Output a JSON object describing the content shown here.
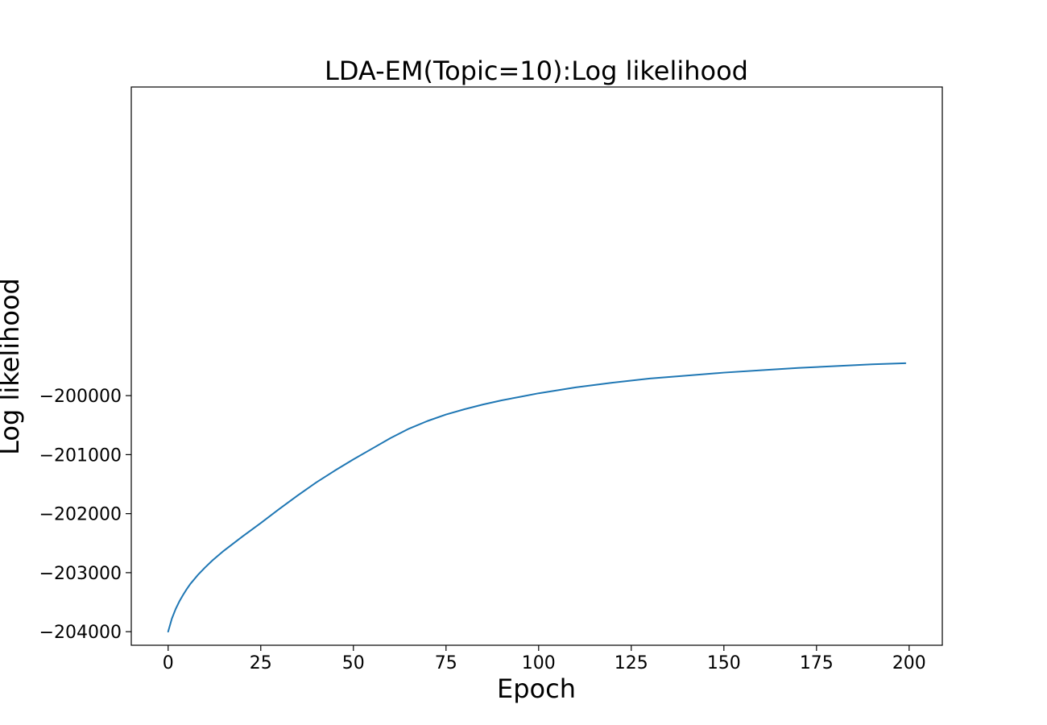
{
  "chart_data": {
    "type": "line",
    "title": "LDA-EM(Topic=10):Log likelihood",
    "xlabel": "Epoch",
    "ylabel": "Log likelihood",
    "xlim": [
      -9.95,
      208.95
    ],
    "ylim": [
      -204230,
      -194770
    ],
    "xticks": [
      0,
      25,
      50,
      75,
      100,
      125,
      150,
      175,
      200
    ],
    "yticks": [
      -204000,
      -203000,
      -202000,
      -201000,
      -200000
    ],
    "xtick_labels": [
      "0",
      "25",
      "50",
      "75",
      "100",
      "125",
      "150",
      "175",
      "200"
    ],
    "ytick_labels": [
      "−204000",
      "−203000",
      "−202000",
      "−201000",
      "−200000"
    ],
    "grid": false,
    "series": [
      {
        "color": "#1f77b4",
        "x": [
          0,
          1,
          2,
          3,
          4,
          5,
          6,
          8,
          10,
          12,
          15,
          20,
          25,
          30,
          35,
          40,
          45,
          50,
          55,
          60,
          65,
          70,
          75,
          80,
          85,
          90,
          95,
          100,
          110,
          120,
          130,
          140,
          150,
          160,
          170,
          180,
          190,
          199
        ],
        "y": [
          -204000,
          -203780,
          -203620,
          -203490,
          -203380,
          -203280,
          -203190,
          -203040,
          -202910,
          -202790,
          -202630,
          -202390,
          -202160,
          -201920,
          -201690,
          -201470,
          -201270,
          -201080,
          -200900,
          -200720,
          -200560,
          -200430,
          -200320,
          -200230,
          -200150,
          -200080,
          -200020,
          -199960,
          -199860,
          -199780,
          -199710,
          -199660,
          -199610,
          -199570,
          -199530,
          -199500,
          -199470,
          -199450
        ]
      }
    ]
  }
}
